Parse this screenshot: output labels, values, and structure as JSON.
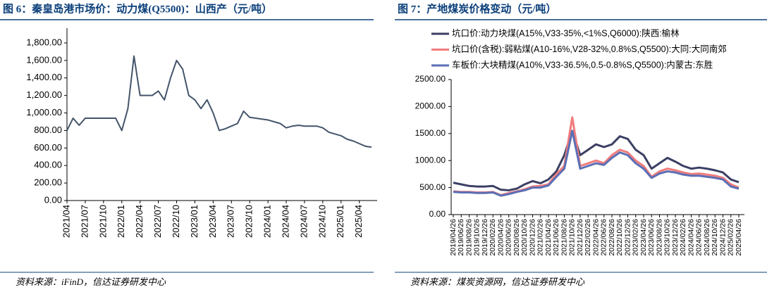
{
  "chart_data": [
    {
      "type": "line",
      "title": "图 6：秦皇岛港市场价：动力煤(Q5500)：山西产（元/吨）",
      "source": "资料来源：iFinD，信达证券研发中心",
      "x": [
        "2021/04",
        "2021/05",
        "2021/06",
        "2021/07",
        "2021/08",
        "2021/09",
        "2021/10",
        "2021/11",
        "2021/12",
        "2022/01",
        "2022/02",
        "2022/03",
        "2022/04",
        "2022/05",
        "2022/06",
        "2022/07",
        "2022/08",
        "2022/09",
        "2022/10",
        "2022/11",
        "2022/12",
        "2023/01",
        "2023/02",
        "2023/03",
        "2023/04",
        "2023/05",
        "2023/06",
        "2023/07",
        "2023/08",
        "2023/09",
        "2023/10",
        "2023/11",
        "2023/12",
        "2024/01",
        "2024/02",
        "2024/03",
        "2024/04",
        "2024/05",
        "2024/06",
        "2024/07",
        "2024/08",
        "2024/09",
        "2024/10",
        "2024/11",
        "2024/12",
        "2025/01",
        "2025/02",
        "2025/03",
        "2025/04",
        "2025/05",
        "2025/06"
      ],
      "series": [
        {
          "color": "#44546a",
          "values": [
            800,
            940,
            860,
            940,
            940,
            940,
            940,
            940,
            940,
            800,
            1050,
            1650,
            1200,
            1200,
            1200,
            1250,
            1150,
            1400,
            1600,
            1500,
            1200,
            1150,
            1050,
            1150,
            1000,
            800,
            820,
            850,
            880,
            1020,
            950,
            940,
            930,
            920,
            900,
            880,
            830,
            850,
            860,
            850,
            850,
            850,
            830,
            780,
            760,
            740,
            700,
            680,
            650,
            620,
            610
          ]
        }
      ],
      "xticks": [
        "2021/04",
        "2021/07",
        "2021/10",
        "2022/01",
        "2022/04",
        "2022/07",
        "2022/10",
        "2023/01",
        "2023/04",
        "2023/07",
        "2023/10",
        "2024/01",
        "2024/04",
        "2024/07",
        "2024/10",
        "2025/01",
        "2025/04"
      ],
      "ylim": [
        0,
        1800
      ],
      "yticks": [
        {
          "value": 0,
          "label": "0.00"
        },
        {
          "value": 200,
          "label": "200.00"
        },
        {
          "value": 400,
          "label": "400.00"
        },
        {
          "value": 600,
          "label": "600.00"
        },
        {
          "value": 800,
          "label": "800.00"
        },
        {
          "value": 1000,
          "label": "1,000.00"
        },
        {
          "value": 1200,
          "label": "1,200.00"
        },
        {
          "value": 1400,
          "label": "1,400.00"
        },
        {
          "value": 1600,
          "label": "1,600.00"
        },
        {
          "value": 1800,
          "label": "1,800.00"
        }
      ]
    },
    {
      "type": "line",
      "title": "图 7：产地煤炭价格变动（元/吨）",
      "source": "资料来源：煤炭资源网，信达证券研发中心",
      "x": [
        "2019/04/26",
        "2019/06/26",
        "2019/08/26",
        "2019/10/26",
        "2019/12/26",
        "2020/02/26",
        "2020/04/26",
        "2020/06/26",
        "2020/08/26",
        "2020/10/26",
        "2020/12/26",
        "2021/02/26",
        "2021/04/26",
        "2021/06/26",
        "2021/08/26",
        "2021/10/26",
        "2021/12/26",
        "2022/02/26",
        "2022/04/26",
        "2022/06/26",
        "2022/08/26",
        "2022/10/26",
        "2022/12/26",
        "2023/02/26",
        "2023/04/26",
        "2023/06/26",
        "2023/08/26",
        "2023/10/26",
        "2023/12/26",
        "2024/02/26",
        "2024/04/26",
        "2024/06/26",
        "2024/08/26",
        "2024/10/26",
        "2024/12/26",
        "2025/02/26",
        "2025/04/26"
      ],
      "xticks": [
        "2019/04/26",
        "2019/06/26",
        "2019/08/26",
        "2019/10/26",
        "2019/12/26",
        "2020/02/26",
        "2020/04/26",
        "2020/06/26",
        "2020/08/26",
        "2020/10/26",
        "2020/12/26",
        "2021/02/26",
        "2021/04/26",
        "2021/06/26",
        "2021/08/26",
        "2021/10/26",
        "2021/12/26",
        "2022/02/26",
        "2022/04/26",
        "2022/06/26",
        "2022/08/26",
        "2022/10/26",
        "2022/12/26",
        "2023/02/26",
        "2023/04/26",
        "2023/06/26",
        "2023/08/26",
        "2023/10/26",
        "2023/12/26",
        "2024/02/26",
        "2024/04/26",
        "2024/06/26",
        "2024/08/26",
        "2024/10/26",
        "2024/12/26",
        "2025/02/26",
        "2025/04/26"
      ],
      "series": [
        {
          "name": "坑口价:动力块煤(A15%,V33-35%,<1%S,Q6000):陕西:榆林",
          "color": "#3b3f63",
          "values": [
            590,
            560,
            530,
            520,
            520,
            530,
            460,
            450,
            480,
            560,
            620,
            580,
            650,
            800,
            1100,
            1550,
            1100,
            1200,
            1300,
            1250,
            1300,
            1450,
            1400,
            1200,
            1100,
            850,
            950,
            1050,
            980,
            900,
            850,
            870,
            850,
            820,
            780,
            650,
            600
          ]
        },
        {
          "name": "坑口价(含税):弱粘煤(A10-16%,V28-32%,0.8%S,Q5500):大同:大同南郊",
          "color": "#f07c7c",
          "values": [
            430,
            420,
            420,
            410,
            410,
            420,
            360,
            400,
            430,
            470,
            520,
            530,
            560,
            750,
            900,
            1800,
            900,
            950,
            1000,
            950,
            1100,
            1200,
            1150,
            1000,
            900,
            700,
            800,
            850,
            820,
            780,
            750,
            760,
            740,
            720,
            680,
            560,
            500
          ]
        },
        {
          "name": "车板价:大块精煤(A10%,V33-36.5%,0.5-0.8%S,Q5500):内蒙古:东胜",
          "color": "#5b6fb5",
          "values": [
            420,
            410,
            410,
            400,
            400,
            410,
            350,
            380,
            420,
            450,
            500,
            500,
            540,
            700,
            850,
            1550,
            850,
            900,
            950,
            920,
            1050,
            1150,
            1100,
            950,
            850,
            680,
            760,
            800,
            780,
            740,
            720,
            720,
            700,
            680,
            650,
            520,
            480
          ]
        }
      ],
      "ylim": [
        0,
        2500
      ],
      "yticks": [
        {
          "value": 0,
          "label": "0.00"
        },
        {
          "value": 500,
          "label": "500.00"
        },
        {
          "value": 1000,
          "label": "1000.00"
        },
        {
          "value": 1500,
          "label": "1500.00"
        },
        {
          "value": 2000,
          "label": "2000.00"
        },
        {
          "value": 2500,
          "label": "2500.00"
        }
      ]
    }
  ]
}
